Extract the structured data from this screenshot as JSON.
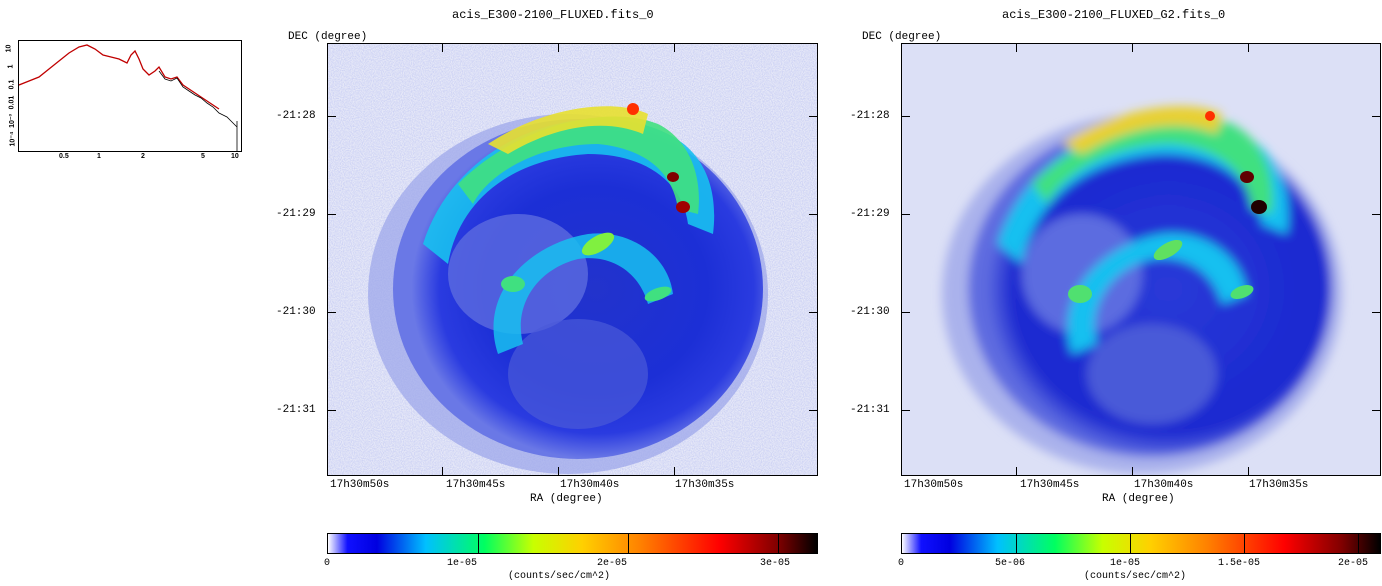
{
  "thumbnail": {
    "y_ticks": [
      "10",
      "1",
      "0.1",
      "0.01",
      "10⁻³",
      "10⁻⁴"
    ],
    "x_ticks": [
      "0.5",
      "1",
      "2",
      "5",
      "10"
    ],
    "colors": {
      "model": "#c00000",
      "data": "#000000"
    }
  },
  "panels": [
    {
      "title": "acis_E300-2100_FLUXED.fits_0",
      "dec_label": "DEC (degree)",
      "ra_label": "RA (degree)",
      "dec_ticks": [
        "-21:28",
        "-21:29",
        "-21:30",
        "-21:31"
      ],
      "ra_ticks": [
        "17h30m50s",
        "17h30m45s",
        "17h30m40s",
        "17h30m35s"
      ],
      "colorbar_ticks": [
        "0",
        "1e-05",
        "2e-05",
        "3e-05"
      ],
      "colorbar_unit": "(counts/sec/cm^2)"
    },
    {
      "title": "acis_E300-2100_FLUXED_G2.fits_0",
      "dec_label": "DEC (degree)",
      "ra_label": "RA (degree)",
      "dec_ticks": [
        "-21:28",
        "-21:29",
        "-21:30",
        "-21:31"
      ],
      "ra_ticks": [
        "17h30m50s",
        "17h30m45s",
        "17h30m40s",
        "17h30m35s"
      ],
      "colorbar_ticks": [
        "0",
        "5e-06",
        "1e-05",
        "1.5e-05",
        "2e-05"
      ],
      "colorbar_unit": "(counts/sec/cm^2)"
    }
  ],
  "colormap": [
    "#ffffff",
    "#0000ff",
    "#00c0ff",
    "#00ff60",
    "#c8ff00",
    "#ffd000",
    "#ff6000",
    "#ff0000",
    "#800000",
    "#000000"
  ]
}
